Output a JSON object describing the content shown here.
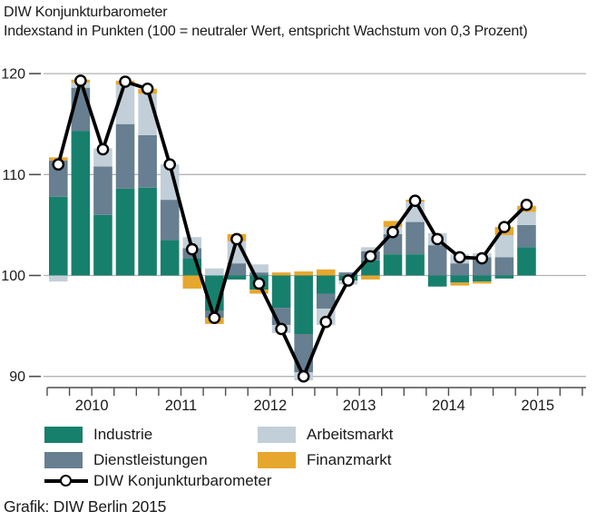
{
  "header": {
    "title": "DIW Konjunkturbarometer",
    "subtitle": "Indexstand in Punkten (100 = neutraler Wert, entspricht Wachstum von 0,3 Prozent)"
  },
  "footer": {
    "credit": "Grafik: DIW Berlin 2015"
  },
  "colors": {
    "industrie": "#17806D",
    "dienstleistungen": "#677F90",
    "arbeitsmarkt": "#C2CFD8",
    "finanzmarkt": "#E6A72F",
    "line": "#000000",
    "grid": "#B3B3B3",
    "axis": "#4D4D4D",
    "text": "#1A1A1A"
  },
  "legend": {
    "items": [
      {
        "label": "Industrie",
        "color_key": "industrie"
      },
      {
        "label": "Dienstleistungen",
        "color_key": "dienstleistungen"
      },
      {
        "label": "Arbeitsmarkt",
        "color_key": "arbeitsmarkt"
      },
      {
        "label": "Finanzmarkt",
        "color_key": "finanzmarkt"
      },
      {
        "label": "DIW Konjunkturbarometer",
        "symbol": "line-marker"
      }
    ]
  },
  "chart_data": {
    "type": "bar",
    "subtype": "stacked_contributions_with_line",
    "baseline": 100,
    "title": "DIW Konjunkturbarometer",
    "ylabel": "Indexstand in Punkten",
    "ylim": [
      88.5,
      121.5
    ],
    "yticks": [
      90,
      100,
      110,
      120
    ],
    "grid": true,
    "legend_position": "bottom",
    "categories": [
      "2010 Q1",
      "2010 Q2",
      "2010 Q3",
      "2010 Q4",
      "2011 Q1",
      "2011 Q2",
      "2011 Q3",
      "2011 Q4",
      "2012 Q1",
      "2012 Q2",
      "2012 Q3",
      "2012 Q4",
      "2013 Q1",
      "2013 Q2",
      "2013 Q3",
      "2013 Q4",
      "2014 Q1",
      "2014 Q2",
      "2014 Q3",
      "2014 Q4",
      "2015 Q1",
      "2015 Q2"
    ],
    "x_year_labels": [
      "2010",
      "2011",
      "2012",
      "2013",
      "2014",
      "2015"
    ],
    "series": [
      {
        "name": "Industrie",
        "color_key": "industrie",
        "values": [
          7.8,
          14.3,
          6.0,
          8.6,
          8.7,
          3.5,
          1.7,
          -3.5,
          -0.4,
          -1.4,
          -3.2,
          -5.8,
          -1.8,
          -0.5,
          1.5,
          2.1,
          2.1,
          -1.1,
          -0.7,
          -0.6,
          -0.3,
          2.8
        ]
      },
      {
        "name": "Dienstleistungen",
        "color_key": "dienstleistungen",
        "values": [
          3.6,
          4.3,
          4.8,
          6.4,
          5.2,
          4.0,
          1.0,
          -0.7,
          1.2,
          0.3,
          -1.7,
          -3.8,
          -1.5,
          0.3,
          0.9,
          2.0,
          3.2,
          3.0,
          1.2,
          1.8,
          1.8,
          2.2
        ]
      },
      {
        "name": "Arbeitsmarkt",
        "color_key": "arbeitsmarkt",
        "values": [
          -0.6,
          0.5,
          1.8,
          3.9,
          4.1,
          3.5,
          1.1,
          0.7,
          2.2,
          0.8,
          -0.8,
          -0.8,
          -1.6,
          -0.4,
          0.4,
          0.7,
          2.0,
          1.2,
          0.9,
          0.4,
          2.2,
          1.3
        ]
      },
      {
        "name": "Finanzmarkt",
        "color_key": "finanzmarkt",
        "values": [
          0.3,
          0.3,
          0.0,
          0.4,
          0.5,
          0.0,
          -1.3,
          -0.6,
          0.7,
          -0.4,
          0.3,
          0.4,
          0.6,
          0.0,
          -0.4,
          0.6,
          0.2,
          0.0,
          -0.3,
          -0.2,
          0.8,
          0.6
        ]
      }
    ],
    "line_series": {
      "name": "DIW Konjunkturbarometer",
      "color_key": "line",
      "values": [
        111.0,
        119.3,
        112.5,
        119.2,
        118.5,
        111.0,
        102.6,
        95.8,
        103.6,
        99.2,
        94.7,
        90.0,
        95.4,
        99.5,
        101.9,
        104.3,
        107.4,
        103.6,
        101.8,
        101.7,
        104.8,
        107.0
      ]
    }
  }
}
